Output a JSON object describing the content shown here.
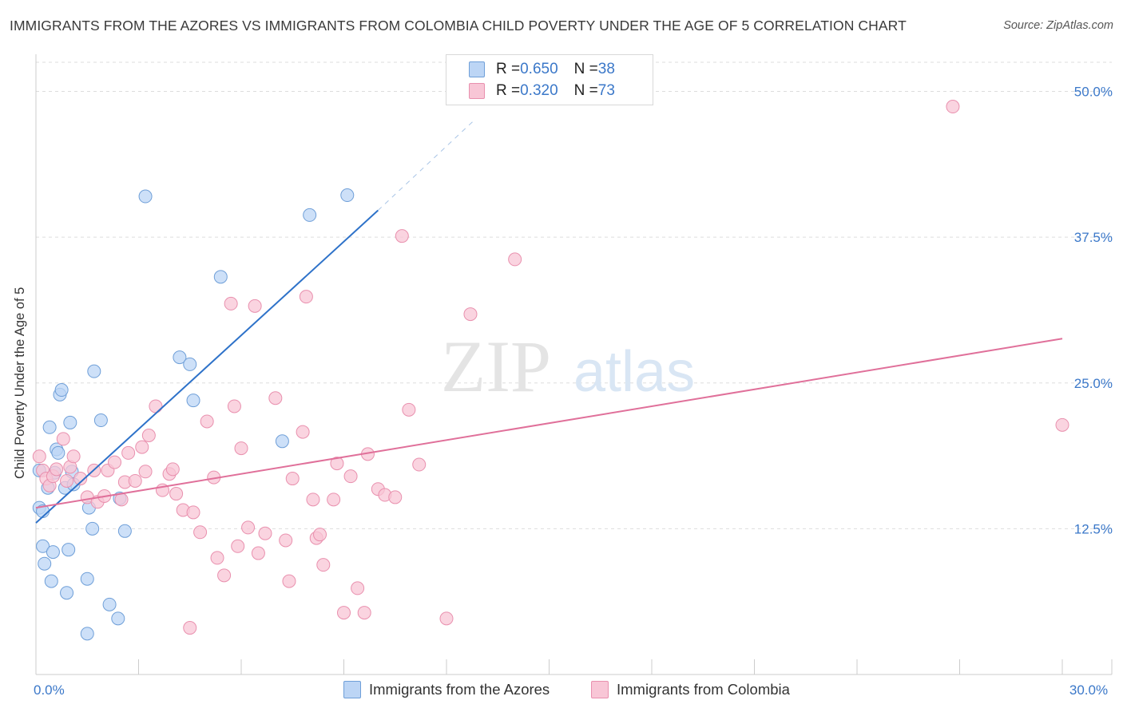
{
  "title": "IMMIGRANTS FROM THE AZORES VS IMMIGRANTS FROM COLOMBIA CHILD POVERTY UNDER THE AGE OF 5 CORRELATION CHART",
  "source": "Source: ZipAtlas.com",
  "watermark": {
    "zip": "ZIP",
    "atlas": "atlas"
  },
  "legend": {
    "azores": {
      "r_label": "R = ",
      "r_value": "0.650",
      "n_label": "N = ",
      "n_value": "38"
    },
    "colombia": {
      "r_label": "R = ",
      "r_value": "0.320",
      "n_label": "N = ",
      "n_value": "73"
    }
  },
  "bottom_legend": {
    "azores": "Immigrants from the Azores",
    "colombia": "Immigrants from Colombia"
  },
  "colors": {
    "azores_fill": "#bcd5f5",
    "azores_stroke": "#6f9fd8",
    "azores_line": "#2e72c9",
    "colombia_fill": "#f8c6d6",
    "colombia_stroke": "#e990ae",
    "colombia_line": "#e0709a",
    "tick_label": "#3b78c9",
    "grid": "#dddddd"
  },
  "chart_data": {
    "type": "scatter",
    "title": "IMMIGRANTS FROM THE AZORES VS IMMIGRANTS FROM COLOMBIA CHILD POVERTY UNDER THE AGE OF 5 CORRELATION CHART",
    "xlabel": "",
    "ylabel": "Child Poverty Under the Age of 5",
    "xlim": [
      0,
      30
    ],
    "ylim": [
      0,
      52.5
    ],
    "x_tick_labels": [
      {
        "value": 0,
        "label": "0.0%"
      },
      {
        "value": 30,
        "label": "30.0%"
      }
    ],
    "x_minor_ticks": [
      0,
      3,
      6,
      9,
      12,
      15,
      18,
      21,
      24,
      27,
      30
    ],
    "y_tick_labels": [
      {
        "value": 12.5,
        "label": "12.5%"
      },
      {
        "value": 25.0,
        "label": "25.0%"
      },
      {
        "value": 37.5,
        "label": "37.5%"
      },
      {
        "value": 50.0,
        "label": "50.0%"
      }
    ],
    "grid": true,
    "series": [
      {
        "name": "Immigrants from the Azores",
        "key": "azores",
        "r": 0.65,
        "n": 38,
        "trend": {
          "x0": 0.0,
          "y0": 13.0,
          "x1": 10.0,
          "y1": 39.8,
          "dash_to_x": 12.8,
          "dash_to_y": 47.5
        },
        "points": [
          [
            0.1,
            17.5
          ],
          [
            0.1,
            14.3
          ],
          [
            0.2,
            11.0
          ],
          [
            0.2,
            14.0
          ],
          [
            0.25,
            9.5
          ],
          [
            0.35,
            16.0
          ],
          [
            0.4,
            21.2
          ],
          [
            0.45,
            8.0
          ],
          [
            0.5,
            10.5
          ],
          [
            0.55,
            17.3
          ],
          [
            0.6,
            19.3
          ],
          [
            0.65,
            19.0
          ],
          [
            0.7,
            24.0
          ],
          [
            0.75,
            24.4
          ],
          [
            0.85,
            16.0
          ],
          [
            0.9,
            7.0
          ],
          [
            0.95,
            10.7
          ],
          [
            1.0,
            21.6
          ],
          [
            1.05,
            17.4
          ],
          [
            1.1,
            16.3
          ],
          [
            1.5,
            8.2
          ],
          [
            1.55,
            14.3
          ],
          [
            1.5,
            3.5
          ],
          [
            1.65,
            12.5
          ],
          [
            1.7,
            26.0
          ],
          [
            1.9,
            21.8
          ],
          [
            2.15,
            6.0
          ],
          [
            2.4,
            4.8
          ],
          [
            2.45,
            15.1
          ],
          [
            2.6,
            12.3
          ],
          [
            3.2,
            41.0
          ],
          [
            4.2,
            27.2
          ],
          [
            4.5,
            26.6
          ],
          [
            4.6,
            23.5
          ],
          [
            5.4,
            34.1
          ],
          [
            7.2,
            20.0
          ],
          [
            8.0,
            39.4
          ],
          [
            9.1,
            41.1
          ]
        ]
      },
      {
        "name": "Immigrants from Colombia",
        "key": "colombia",
        "r": 0.32,
        "n": 73,
        "trend": {
          "x0": 0.0,
          "y0": 14.3,
          "x1": 30.0,
          "y1": 28.8
        },
        "points": [
          [
            0.1,
            18.7
          ],
          [
            0.2,
            17.5
          ],
          [
            0.3,
            16.8
          ],
          [
            0.4,
            16.2
          ],
          [
            0.5,
            17.0
          ],
          [
            0.6,
            17.6
          ],
          [
            0.8,
            20.2
          ],
          [
            0.9,
            16.6
          ],
          [
            1.0,
            17.8
          ],
          [
            1.1,
            18.7
          ],
          [
            1.3,
            16.8
          ],
          [
            1.5,
            15.2
          ],
          [
            1.7,
            17.5
          ],
          [
            1.8,
            14.8
          ],
          [
            2.0,
            15.3
          ],
          [
            2.1,
            17.5
          ],
          [
            2.3,
            18.2
          ],
          [
            2.5,
            15.0
          ],
          [
            2.6,
            16.5
          ],
          [
            2.7,
            19.0
          ],
          [
            2.9,
            16.6
          ],
          [
            3.1,
            19.5
          ],
          [
            3.2,
            17.4
          ],
          [
            3.3,
            20.5
          ],
          [
            3.5,
            23.0
          ],
          [
            3.7,
            15.8
          ],
          [
            3.9,
            17.2
          ],
          [
            4.0,
            17.6
          ],
          [
            4.1,
            15.5
          ],
          [
            4.3,
            14.1
          ],
          [
            4.5,
            4.0
          ],
          [
            4.6,
            13.9
          ],
          [
            4.8,
            12.2
          ],
          [
            5.0,
            21.7
          ],
          [
            5.2,
            16.9
          ],
          [
            5.3,
            10.0
          ],
          [
            5.5,
            8.5
          ],
          [
            5.7,
            31.8
          ],
          [
            5.8,
            23.0
          ],
          [
            5.9,
            11.0
          ],
          [
            6.0,
            19.4
          ],
          [
            6.2,
            12.6
          ],
          [
            6.4,
            31.6
          ],
          [
            6.5,
            10.4
          ],
          [
            6.7,
            12.1
          ],
          [
            7.0,
            23.7
          ],
          [
            7.3,
            11.5
          ],
          [
            7.4,
            8.0
          ],
          [
            7.5,
            16.8
          ],
          [
            7.8,
            20.8
          ],
          [
            7.9,
            32.4
          ],
          [
            8.1,
            15.0
          ],
          [
            8.2,
            11.7
          ],
          [
            8.3,
            12.0
          ],
          [
            8.4,
            9.4
          ],
          [
            8.7,
            15.0
          ],
          [
            8.8,
            18.1
          ],
          [
            9.0,
            5.3
          ],
          [
            9.2,
            17.0
          ],
          [
            9.4,
            7.4
          ],
          [
            9.6,
            5.3
          ],
          [
            9.7,
            18.9
          ],
          [
            10.0,
            15.9
          ],
          [
            10.2,
            15.4
          ],
          [
            10.5,
            15.2
          ],
          [
            10.7,
            37.6
          ],
          [
            10.9,
            22.7
          ],
          [
            11.2,
            18.0
          ],
          [
            12.0,
            4.8
          ],
          [
            12.7,
            30.9
          ],
          [
            14.0,
            35.6
          ],
          [
            26.8,
            48.7
          ],
          [
            30.0,
            21.4
          ]
        ]
      }
    ]
  }
}
